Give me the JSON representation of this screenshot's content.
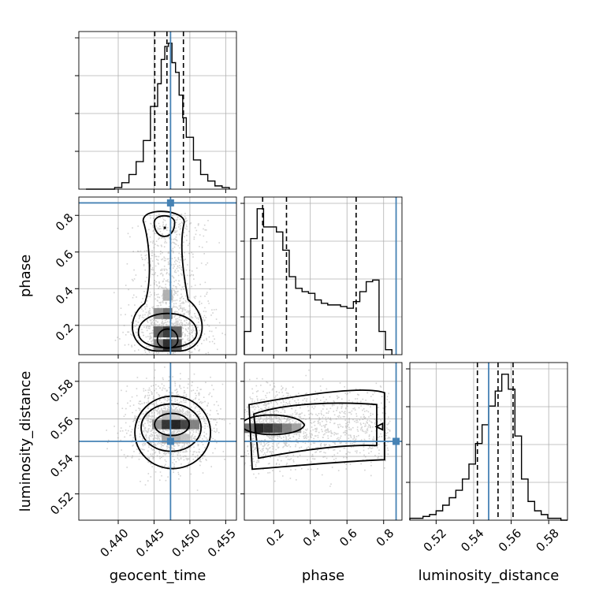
{
  "chart_data": {
    "type": "corner",
    "title": "",
    "parameters": [
      {
        "name": "geocent_time",
        "label": "geocent_time",
        "range": [
          0.4345,
          0.4565
        ],
        "ticks": [
          0.44,
          0.445,
          0.45,
          0.455
        ],
        "tick_labels": [
          "0.440",
          "0.445",
          "0.450",
          "0.455"
        ],
        "truth": 0.4473,
        "quantiles": [
          0.4451,
          0.4468,
          0.4491
        ]
      },
      {
        "name": "phase",
        "label": "phase",
        "range": [
          0.04,
          0.9
        ],
        "ticks": [
          0.2,
          0.4,
          0.6,
          0.8
        ],
        "tick_labels": [
          "0.2",
          "0.4",
          "0.6",
          "0.8"
        ],
        "truth": 0.868,
        "quantiles": [
          0.14,
          0.27,
          0.65
        ]
      },
      {
        "name": "luminosity_distance",
        "label": "luminosity_distance",
        "range": [
          0.506,
          0.59
        ],
        "ticks": [
          0.52,
          0.54,
          0.56,
          0.58
        ],
        "tick_labels": [
          "0.52",
          "0.54",
          "0.56",
          "0.58"
        ],
        "truth": 0.548,
        "quantiles": [
          0.542,
          0.553,
          0.561
        ]
      }
    ],
    "histograms": [
      {
        "param": "geocent_time",
        "bin_edges": [
          0.4355,
          0.4365,
          0.4375,
          0.4385,
          0.4395,
          0.4405,
          0.4415,
          0.4425,
          0.4435,
          0.4445,
          0.4455,
          0.446,
          0.4465,
          0.447,
          0.4475,
          0.448,
          0.4485,
          0.449,
          0.4495,
          0.4505,
          0.4515,
          0.4525,
          0.4535,
          0.4545,
          0.4555
        ],
        "counts": [
          0,
          0,
          0,
          0,
          1,
          4,
          9,
          17,
          30,
          51,
          65,
          80,
          88,
          90,
          78,
          72,
          58,
          44,
          32,
          18,
          9,
          5,
          2,
          1
        ]
      },
      {
        "param": "phase",
        "bin_edges": [
          0.04,
          0.075,
          0.11,
          0.145,
          0.18,
          0.215,
          0.25,
          0.285,
          0.32,
          0.355,
          0.39,
          0.425,
          0.46,
          0.495,
          0.53,
          0.565,
          0.6,
          0.635,
          0.67,
          0.705,
          0.74,
          0.775,
          0.81,
          0.845
        ],
        "counts": [
          14,
          70,
          88,
          77,
          77,
          74,
          63,
          47,
          40,
          38,
          37,
          33,
          31,
          30,
          30,
          29,
          28,
          32,
          38,
          44,
          45,
          14,
          3
        ]
      },
      {
        "param": "luminosity_distance",
        "bin_edges": [
          0.506,
          0.5095,
          0.513,
          0.5165,
          0.52,
          0.5235,
          0.527,
          0.5305,
          0.534,
          0.5375,
          0.541,
          0.5445,
          0.548,
          0.5515,
          0.555,
          0.5585,
          0.562,
          0.5655,
          0.569,
          0.5725,
          0.576,
          0.5795,
          0.583,
          0.5865,
          0.59
        ],
        "counts": [
          1,
          1,
          2,
          3,
          5,
          8,
          12,
          16,
          22,
          30,
          41,
          51,
          61,
          69,
          78,
          70,
          45,
          22,
          10,
          5,
          3,
          1,
          1,
          0
        ]
      }
    ],
    "density_2d": [
      {
        "x": "geocent_time",
        "y": "phase",
        "note": "bimodal in phase, centred near geocent_time 0.4470",
        "modes": [
          {
            "x": 0.447,
            "y": 0.16,
            "weight": 1.0
          },
          {
            "x": 0.4466,
            "y": 0.72,
            "weight": 0.35
          }
        ]
      },
      {
        "x": "geocent_time",
        "y": "luminosity_distance",
        "modes": [
          {
            "x": 0.4476,
            "y": 0.557,
            "weight": 1.0
          }
        ]
      },
      {
        "x": "phase",
        "y": "luminosity_distance",
        "modes": [
          {
            "x": 0.17,
            "y": 0.555,
            "weight": 1.0
          },
          {
            "x": 0.78,
            "y": 0.558,
            "weight": 0.3
          }
        ]
      }
    ],
    "grid": true,
    "legend": "none"
  },
  "colors": {
    "truth": "#4682b4",
    "contour": "#000000",
    "histogram": "#000000",
    "grid": "#b0b0b0",
    "samples": "#808080"
  }
}
